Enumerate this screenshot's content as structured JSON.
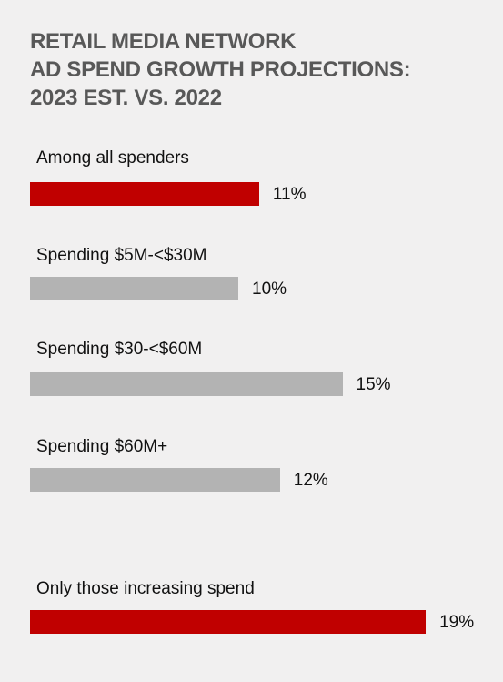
{
  "chart_data": {
    "type": "bar",
    "orientation": "horizontal",
    "title_lines": [
      "RETAIL MEDIA NETWORK",
      "AD SPEND GROWTH PROJECTIONS:",
      "2023 EST. VS. 2022"
    ],
    "categories": [
      "Among all spenders",
      "Spending $5M-<$30M",
      "Spending $30-<$60M",
      "Spending $60M+",
      "Only those increasing spend"
    ],
    "values": [
      11,
      10,
      15,
      12,
      19
    ],
    "value_labels": [
      "11%",
      "10%",
      "15%",
      "12%",
      "19%"
    ],
    "bar_colors": [
      "#c00000",
      "#b3b3b3",
      "#b3b3b3",
      "#b3b3b3",
      "#c00000"
    ],
    "grid": false,
    "legend": "none"
  }
}
